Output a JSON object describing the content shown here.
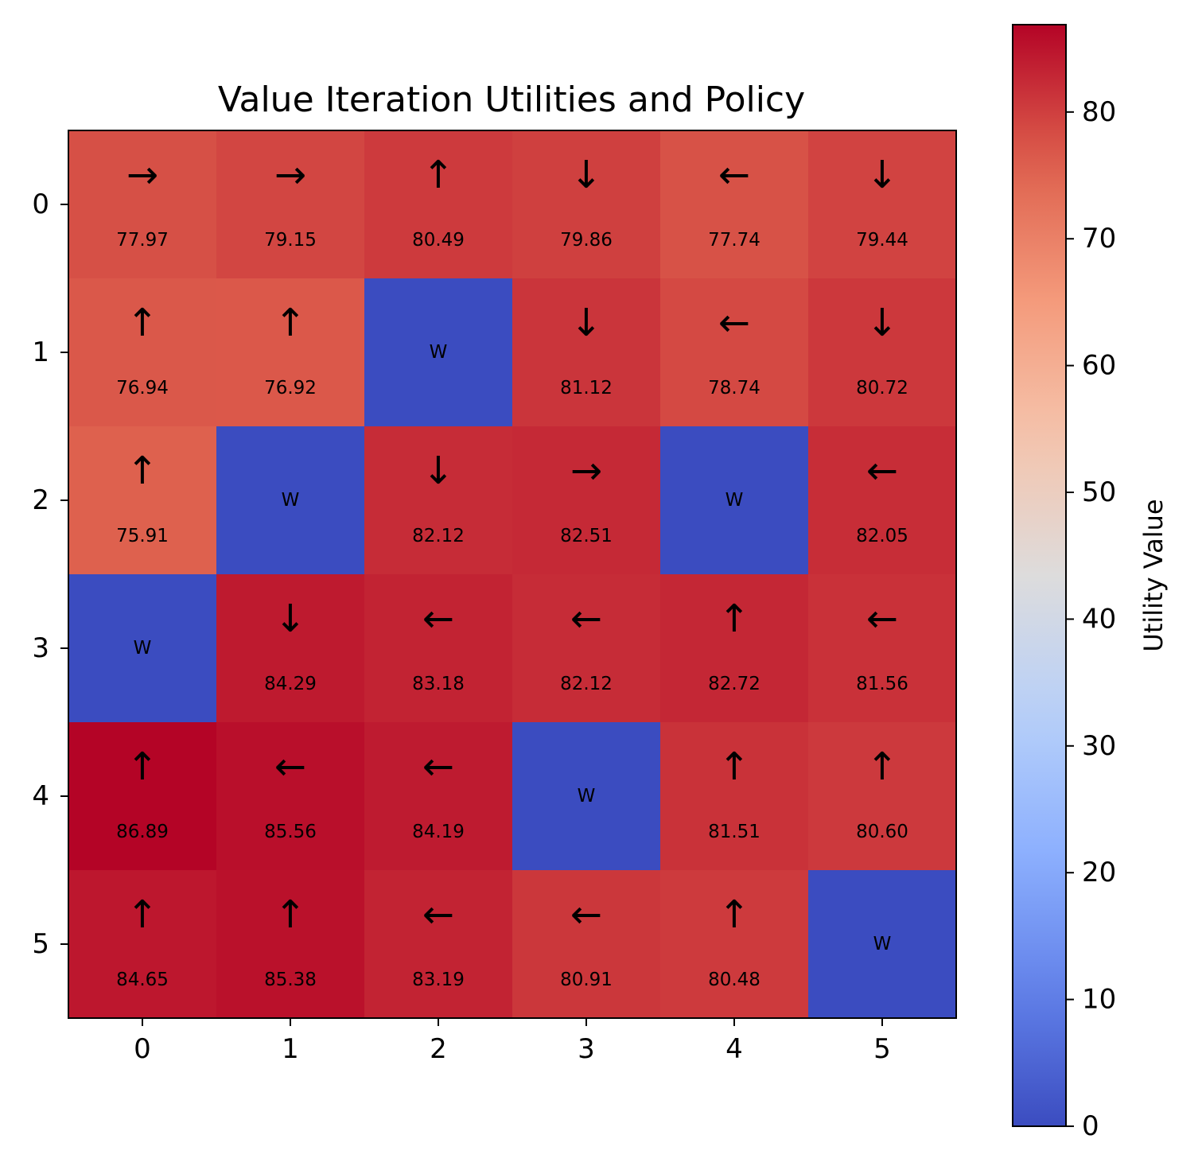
{
  "chart_data": {
    "type": "heatmap",
    "title": "Value Iteration Utilities and Policy",
    "xlabel": "",
    "ylabel": "",
    "x_ticks": [
      "0",
      "1",
      "2",
      "3",
      "4",
      "5"
    ],
    "y_ticks": [
      "0",
      "1",
      "2",
      "3",
      "4",
      "5"
    ],
    "colormap": "coolwarm",
    "vmin": 0,
    "vmax": 86.89,
    "wall_label": "W",
    "values": [
      [
        77.97,
        79.15,
        80.49,
        79.86,
        77.74,
        79.44
      ],
      [
        76.94,
        76.92,
        0,
        81.12,
        78.74,
        80.72
      ],
      [
        75.91,
        0,
        82.12,
        82.51,
        0,
        82.05
      ],
      [
        0,
        84.29,
        83.18,
        82.12,
        82.72,
        81.56
      ],
      [
        86.89,
        85.56,
        84.19,
        0,
        81.51,
        80.6
      ],
      [
        84.65,
        85.38,
        83.19,
        80.91,
        80.48,
        0
      ]
    ],
    "value_labels": [
      [
        "77.97",
        "79.15",
        "80.49",
        "79.86",
        "77.74",
        "79.44"
      ],
      [
        "76.94",
        "76.92",
        "",
        "81.12",
        "78.74",
        "80.72"
      ],
      [
        "75.91",
        "",
        "82.12",
        "82.51",
        "",
        "82.05"
      ],
      [
        "",
        "84.29",
        "83.18",
        "82.12",
        "82.72",
        "81.56"
      ],
      [
        "86.89",
        "85.56",
        "84.19",
        "",
        "81.51",
        "80.60"
      ],
      [
        "84.65",
        "85.38",
        "83.19",
        "80.91",
        "80.48",
        ""
      ]
    ],
    "walls": [
      [
        false,
        false,
        false,
        false,
        false,
        false
      ],
      [
        false,
        false,
        true,
        false,
        false,
        false
      ],
      [
        false,
        true,
        false,
        false,
        true,
        false
      ],
      [
        true,
        false,
        false,
        false,
        false,
        false
      ],
      [
        false,
        false,
        false,
        true,
        false,
        false
      ],
      [
        false,
        false,
        false,
        false,
        false,
        true
      ]
    ],
    "policy": [
      [
        "→",
        "→",
        "↑",
        "↓",
        "←",
        "↓"
      ],
      [
        "↑",
        "↑",
        "",
        "↓",
        "←",
        "↓"
      ],
      [
        "↑",
        "",
        "↓",
        "→",
        "",
        "←"
      ],
      [
        "",
        "↓",
        "←",
        "←",
        "↑",
        "←"
      ],
      [
        "↑",
        "←",
        "←",
        "",
        "↑",
        "↑"
      ],
      [
        "↑",
        "↑",
        "←",
        "←",
        "↑",
        ""
      ]
    ],
    "colorbar": {
      "label": "Utility Value",
      "ticks": [
        0,
        10,
        20,
        30,
        40,
        50,
        60,
        70,
        80
      ],
      "tick_labels": [
        "0",
        "10",
        "20",
        "30",
        "40",
        "50",
        "60",
        "70",
        "80"
      ]
    }
  }
}
